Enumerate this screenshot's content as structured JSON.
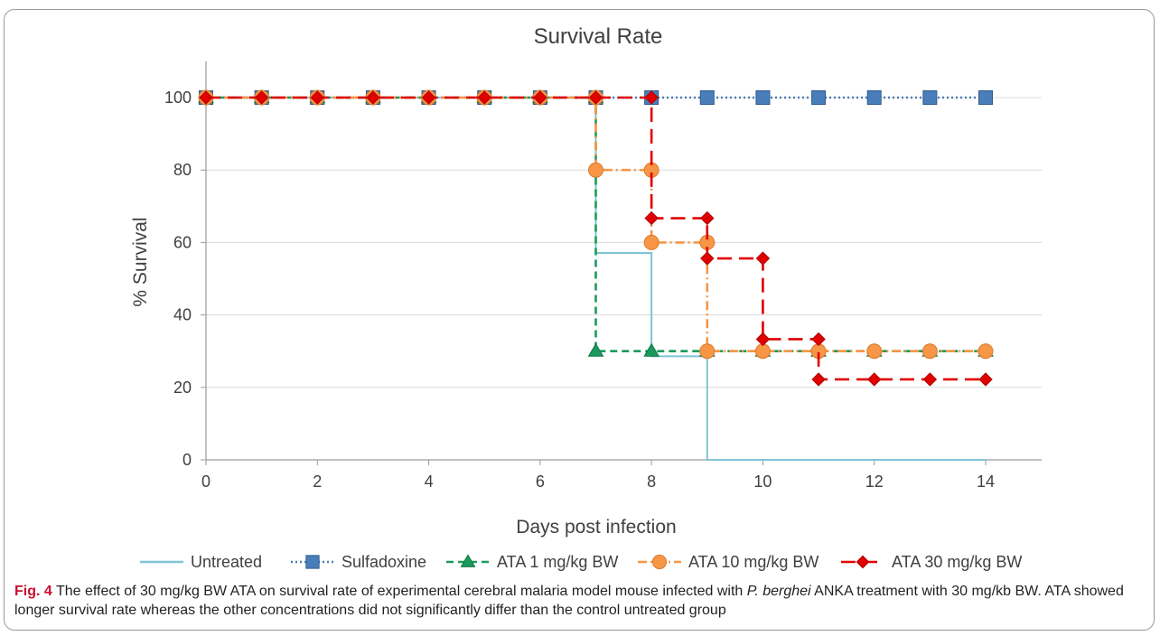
{
  "chart_data": {
    "type": "line",
    "step": true,
    "title": "Survival Rate",
    "xlabel": "Days post infection",
    "ylabel": "% Survival",
    "xlim": [
      0,
      14
    ],
    "ylim": [
      0,
      100
    ],
    "xticks": [
      0,
      2,
      4,
      6,
      8,
      10,
      12,
      14
    ],
    "yticks": [
      0,
      20,
      40,
      60,
      80,
      100
    ],
    "grid": "horizontal",
    "legend_position": "bottom",
    "series": [
      {
        "name": "Untreated",
        "color": "#7fc4d6",
        "line_style": "solid",
        "marker": "none",
        "points": [
          [
            0,
            100
          ],
          [
            7,
            100
          ],
          [
            7,
            57.1
          ],
          [
            8,
            57.1
          ],
          [
            8,
            28.6
          ],
          [
            9,
            28.6
          ],
          [
            9,
            0
          ],
          [
            14,
            0
          ]
        ]
      },
      {
        "name": "Sulfadoxine",
        "color": "#4a7ebb",
        "line_style": "dotted",
        "marker": "square",
        "points": [
          [
            0,
            100
          ],
          [
            1,
            100
          ],
          [
            2,
            100
          ],
          [
            3,
            100
          ],
          [
            4,
            100
          ],
          [
            5,
            100
          ],
          [
            6,
            100
          ],
          [
            7,
            100
          ],
          [
            8,
            100
          ],
          [
            9,
            100
          ],
          [
            10,
            100
          ],
          [
            11,
            100
          ],
          [
            12,
            100
          ],
          [
            13,
            100
          ],
          [
            14,
            100
          ]
        ]
      },
      {
        "name": "ATA 1 mg/kg BW",
        "color": "#1a9a5c",
        "line_style": "dashed",
        "marker": "triangle",
        "points": [
          [
            0,
            100
          ],
          [
            1,
            100
          ],
          [
            2,
            100
          ],
          [
            3,
            100
          ],
          [
            4,
            100
          ],
          [
            5,
            100
          ],
          [
            6,
            100
          ],
          [
            7,
            100
          ],
          [
            7,
            30
          ],
          [
            8,
            30
          ],
          [
            9,
            30
          ],
          [
            10,
            30
          ],
          [
            11,
            30
          ],
          [
            12,
            30
          ],
          [
            13,
            30
          ],
          [
            14,
            30
          ]
        ]
      },
      {
        "name": "ATA 10 mg/kg BW",
        "color": "#f79646",
        "line_style": "dashdot",
        "marker": "circle",
        "points": [
          [
            0,
            100
          ],
          [
            1,
            100
          ],
          [
            2,
            100
          ],
          [
            3,
            100
          ],
          [
            4,
            100
          ],
          [
            5,
            100
          ],
          [
            6,
            100
          ],
          [
            7,
            100
          ],
          [
            7,
            80
          ],
          [
            8,
            80
          ],
          [
            8,
            60
          ],
          [
            9,
            60
          ],
          [
            9,
            30
          ],
          [
            10,
            30
          ],
          [
            11,
            30
          ],
          [
            12,
            30
          ],
          [
            13,
            30
          ],
          [
            14,
            30
          ]
        ]
      },
      {
        "name": "ATA 30 mg/kg BW",
        "color": "#e00000",
        "line_style": "longdash",
        "marker": "diamond",
        "points": [
          [
            0,
            100
          ],
          [
            1,
            100
          ],
          [
            2,
            100
          ],
          [
            3,
            100
          ],
          [
            4,
            100
          ],
          [
            5,
            100
          ],
          [
            6,
            100
          ],
          [
            7,
            100
          ],
          [
            8,
            100
          ],
          [
            8,
            66.7
          ],
          [
            9,
            66.7
          ],
          [
            9,
            55.6
          ],
          [
            10,
            55.6
          ],
          [
            10,
            33.3
          ],
          [
            11,
            33.3
          ],
          [
            11,
            22.2
          ],
          [
            12,
            22.2
          ],
          [
            13,
            22.2
          ],
          [
            14,
            22.2
          ]
        ]
      }
    ]
  },
  "caption": {
    "label": "Fig. 4",
    "text_1": "The effect of 30 mg/kg BW ATA on survival rate of experimental cerebral malaria model mouse infected with ",
    "species": "P. berghei",
    "text_2": " ANKA treatment with 30 mg/kb BW. ATA showed longer survival rate whereas the other concentrations did not significantly differ than the control untreated group"
  }
}
